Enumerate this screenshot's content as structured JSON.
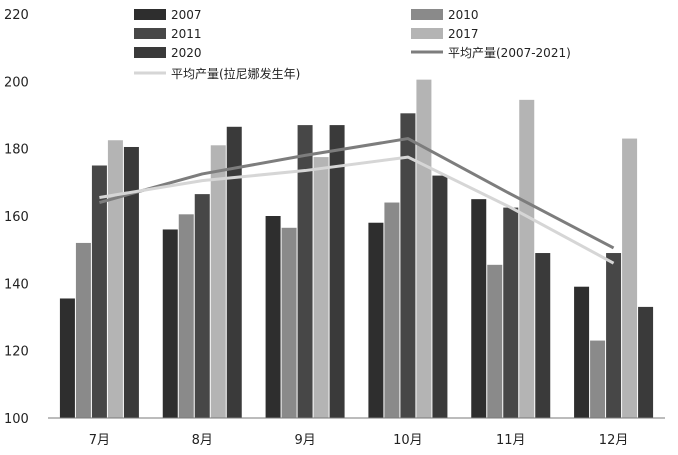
{
  "chart_data": {
    "type": "bar",
    "title": "",
    "xlabel": "",
    "ylabel": "",
    "ylim": [
      100,
      220
    ],
    "yticks": [
      100,
      120,
      140,
      160,
      180,
      200,
      220
    ],
    "grid": false,
    "legend_position": "top",
    "categories": [
      "7月",
      "8月",
      "9月",
      "10月",
      "11月",
      "12月"
    ],
    "series": [
      {
        "name": "2007",
        "type": "bar",
        "color": "#2e2e2e",
        "values": [
          135.5,
          156,
          160,
          158,
          165,
          139
        ]
      },
      {
        "name": "2010",
        "type": "bar",
        "color": "#8a8a8a",
        "values": [
          152,
          160.5,
          156.5,
          164,
          145.5,
          123
        ]
      },
      {
        "name": "2011",
        "type": "bar",
        "color": "#474747",
        "values": [
          175,
          166.5,
          187,
          190.5,
          162.5,
          149
        ]
      },
      {
        "name": "2017",
        "type": "bar",
        "color": "#b4b4b4",
        "values": [
          182.5,
          181,
          177.5,
          200.5,
          194.5,
          183
        ]
      },
      {
        "name": "2020",
        "type": "bar",
        "color": "#3a3a3a",
        "values": [
          180.5,
          186.5,
          187,
          172,
          149,
          133
        ]
      },
      {
        "name": "平均产量(2007-2021)",
        "type": "line",
        "color": "#7d7d7d",
        "values": [
          164,
          172.5,
          178,
          183,
          166.5,
          150.5
        ]
      },
      {
        "name": "平均产量(拉尼娜发生年)",
        "type": "line",
        "color": "#d6d6d6",
        "values": [
          165.5,
          170.5,
          173.5,
          177.5,
          162.5,
          146
        ]
      }
    ]
  }
}
